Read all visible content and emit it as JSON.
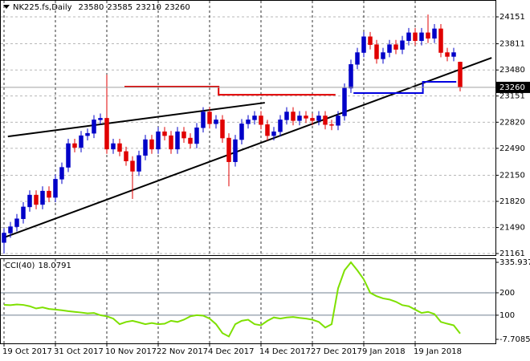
{
  "chart_data": [
    {
      "type": "candlestick",
      "title": "NK225.fs,Daily",
      "categories": [
        "19 Oct 2017",
        null,
        null,
        null,
        null,
        null,
        null,
        null,
        "31 Oct 2017",
        null,
        null,
        null,
        null,
        null,
        null,
        null,
        "10 Nov 2017",
        null,
        null,
        null,
        null,
        null,
        null,
        null,
        "22 Nov 2017",
        null,
        null,
        null,
        null,
        null,
        null,
        null,
        "4 Dec 2017",
        null,
        null,
        null,
        null,
        null,
        null,
        null,
        "14 Dec 2017",
        null,
        null,
        null,
        null,
        null,
        null,
        null,
        "27 Dec 2017",
        null,
        null,
        null,
        null,
        null,
        null,
        null,
        "9 Jan 2018",
        null,
        null,
        null,
        null,
        null,
        null,
        null,
        "19 Jan 2018",
        null,
        null,
        null,
        null,
        null,
        null,
        null
      ],
      "open": [
        21300,
        21420,
        21500,
        21600,
        21750,
        21900,
        21780,
        21950,
        21870,
        22100,
        22250,
        22550,
        22500,
        22650,
        22680,
        22850,
        22870,
        22480,
        22550,
        22450,
        22330,
        22200,
        22400,
        22600,
        22480,
        22700,
        22650,
        22480,
        22700,
        22620,
        22550,
        22750,
        22950,
        22800,
        22850,
        22620,
        22320,
        22600,
        22800,
        22850,
        22900,
        22790,
        22650,
        22700,
        22850,
        22950,
        22840,
        22900,
        22870,
        22840,
        22900,
        22790,
        22780,
        22900,
        23250,
        23550,
        23700,
        23900,
        23800,
        23620,
        23700,
        23800,
        23740,
        23850,
        23950,
        23850,
        23950,
        23880,
        24000,
        23700,
        23650,
        23580
      ],
      "high": [
        21480,
        21560,
        21660,
        21810,
        21960,
        21960,
        22010,
        22010,
        22160,
        22310,
        22610,
        22610,
        22710,
        22740,
        22910,
        22930,
        23420,
        22610,
        22610,
        22510,
        22390,
        22460,
        22660,
        22660,
        22760,
        22760,
        22710,
        22760,
        22760,
        22680,
        22810,
        23010,
        23010,
        22910,
        22910,
        22680,
        22660,
        22860,
        22910,
        22960,
        22960,
        22850,
        22760,
        22910,
        23010,
        23010,
        22960,
        22960,
        22930,
        22960,
        22960,
        22850,
        22960,
        23310,
        23610,
        23760,
        23960,
        23960,
        23860,
        23760,
        23860,
        23860,
        23910,
        24010,
        24010,
        24010,
        24180,
        24060,
        24060,
        23760,
        23760,
        23585
      ],
      "low": [
        21160,
        21360,
        21440,
        21540,
        21690,
        21720,
        21720,
        21810,
        21810,
        22040,
        22190,
        22440,
        22440,
        22590,
        22620,
        22790,
        22420,
        22420,
        22390,
        22270,
        21850,
        22140,
        22340,
        22420,
        22420,
        22590,
        22420,
        22420,
        22560,
        22490,
        22490,
        22690,
        22740,
        22740,
        22560,
        22010,
        22260,
        22540,
        22740,
        22790,
        22730,
        22590,
        22590,
        22640,
        22790,
        22780,
        22780,
        22810,
        22780,
        22780,
        22730,
        22720,
        22720,
        22840,
        23190,
        23490,
        23640,
        23740,
        23560,
        23560,
        23640,
        23680,
        23680,
        23790,
        23790,
        23790,
        23820,
        23820,
        23640,
        23590,
        23590,
        23210
      ],
      "close": [
        21420,
        21500,
        21600,
        21750,
        21900,
        21780,
        21950,
        21870,
        22100,
        22250,
        22550,
        22500,
        22650,
        22680,
        22850,
        22870,
        22480,
        22550,
        22450,
        22330,
        22200,
        22400,
        22600,
        22480,
        22700,
        22650,
        22480,
        22700,
        22620,
        22550,
        22750,
        22950,
        22800,
        22850,
        22620,
        22320,
        22600,
        22800,
        22850,
        22900,
        22790,
        22650,
        22700,
        22850,
        22950,
        22840,
        22900,
        22870,
        22840,
        22900,
        22790,
        22780,
        22900,
        23250,
        23550,
        23700,
        23900,
        23800,
        23620,
        23700,
        23800,
        23740,
        23850,
        23950,
        23850,
        23950,
        23880,
        24000,
        23700,
        23650,
        23700,
        23260
      ],
      "up_color": "#0000c8",
      "down_color": "#e00000",
      "ylim": [
        21141,
        24364
      ],
      "yticks": [
        21161,
        21490,
        21820,
        22150,
        22490,
        22820,
        23151,
        23480,
        23811,
        24151
      ],
      "grid": true,
      "trendlines": [
        {
          "color": "#000000",
          "points": [
            [
              0.6,
              22640
            ],
            [
              40.6,
              23066
            ]
          ]
        },
        {
          "color": "#000000",
          "points": [
            [
              0,
              21363
            ],
            [
              75.9,
              23634
            ]
          ]
        },
        {
          "color": "#e00000",
          "points": [
            [
              18.75,
              23269
            ],
            [
              33.4,
              23269
            ],
            [
              33.4,
              23167
            ],
            [
              51.6,
              23167
            ]
          ]
        },
        {
          "color": "#0000e0",
          "points": [
            [
              54.4,
              23188
            ],
            [
              65.2,
              23188
            ],
            [
              65.2,
              23330
            ],
            [
              70.4,
              23330
            ]
          ]
        }
      ]
    },
    {
      "type": "line",
      "title": "CCI(40)",
      "values": [
        146,
        145,
        148,
        146,
        140,
        130,
        135,
        128,
        125,
        122,
        118,
        115,
        112,
        108,
        110,
        100,
        95,
        85,
        60,
        70,
        75,
        68,
        60,
        65,
        60,
        62,
        75,
        70,
        80,
        95,
        100,
        98,
        85,
        60,
        20,
        5,
        60,
        75,
        80,
        60,
        55,
        75,
        90,
        85,
        90,
        92,
        88,
        85,
        80,
        70,
        45,
        60,
        220,
        300,
        335.9371,
        300,
        260,
        200,
        185,
        175,
        170,
        160,
        145,
        140,
        125,
        110,
        115,
        105,
        70,
        62,
        55,
        18.0791
      ],
      "color": "#7ee000",
      "ylim": [
        -7.7085,
        335.9371
      ],
      "yticks": [
        -7.7085,
        100,
        200,
        335.9371
      ]
    }
  ]
}
